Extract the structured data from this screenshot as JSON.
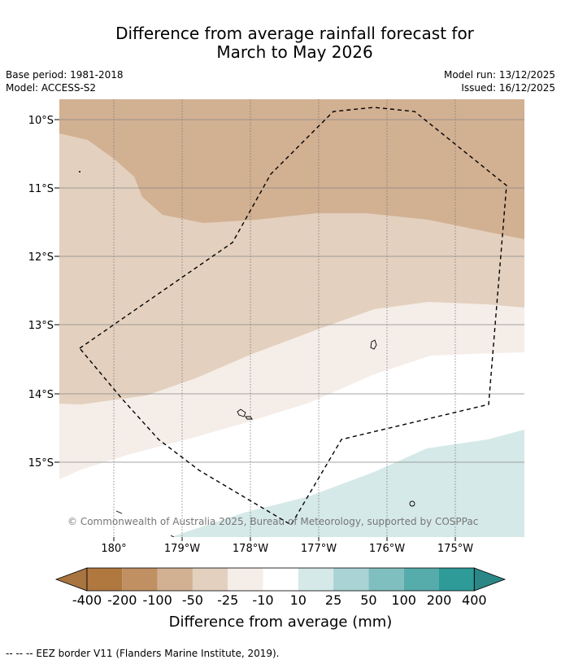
{
  "header": {
    "title_line1": "Difference from average rainfall forecast for",
    "title_line2": "March to May 2026",
    "base_period": "Base period: 1981-2018",
    "model": "Model: ACCESS-S2",
    "model_run": "Model run: 13/12/2025",
    "issued": "Issued: 16/12/2025"
  },
  "map": {
    "lat_labels": [
      "10°S",
      "11°S",
      "12°S",
      "13°S",
      "14°S",
      "15°S"
    ],
    "lon_labels": [
      "180°",
      "179°W",
      "178°W",
      "177°W",
      "176°W",
      "175°W"
    ],
    "copyright": "© Commonwealth of Australia 2025, Bureau of Meteorology, supported by COSPPac",
    "region_fills": {
      "band_minus100": "#d2b092",
      "band_minus50": "#e3d0be",
      "band_minus25": "#f5ede8",
      "band_minus10_10": "#ffffff",
      "band_10_25": "#d5e9e8"
    }
  },
  "legend": {
    "title": "Difference from average (mm)",
    "labels": [
      "-400",
      "-200",
      "-100",
      "-50",
      "-25",
      "-10",
      "10",
      "25",
      "50",
      "100",
      "200",
      "400"
    ],
    "colors": [
      "#a87440",
      "#b0773f",
      "#c09062",
      "#d2b092",
      "#e3d0be",
      "#f5ede8",
      "#ffffff",
      "#d5e9e8",
      "#a9d3d4",
      "#80bfbf",
      "#56abab",
      "#2e9b99",
      "#2a8786"
    ]
  },
  "footnote": "-- -- -- EEZ border V11 (Flanders Marine Institute, 2019)."
}
